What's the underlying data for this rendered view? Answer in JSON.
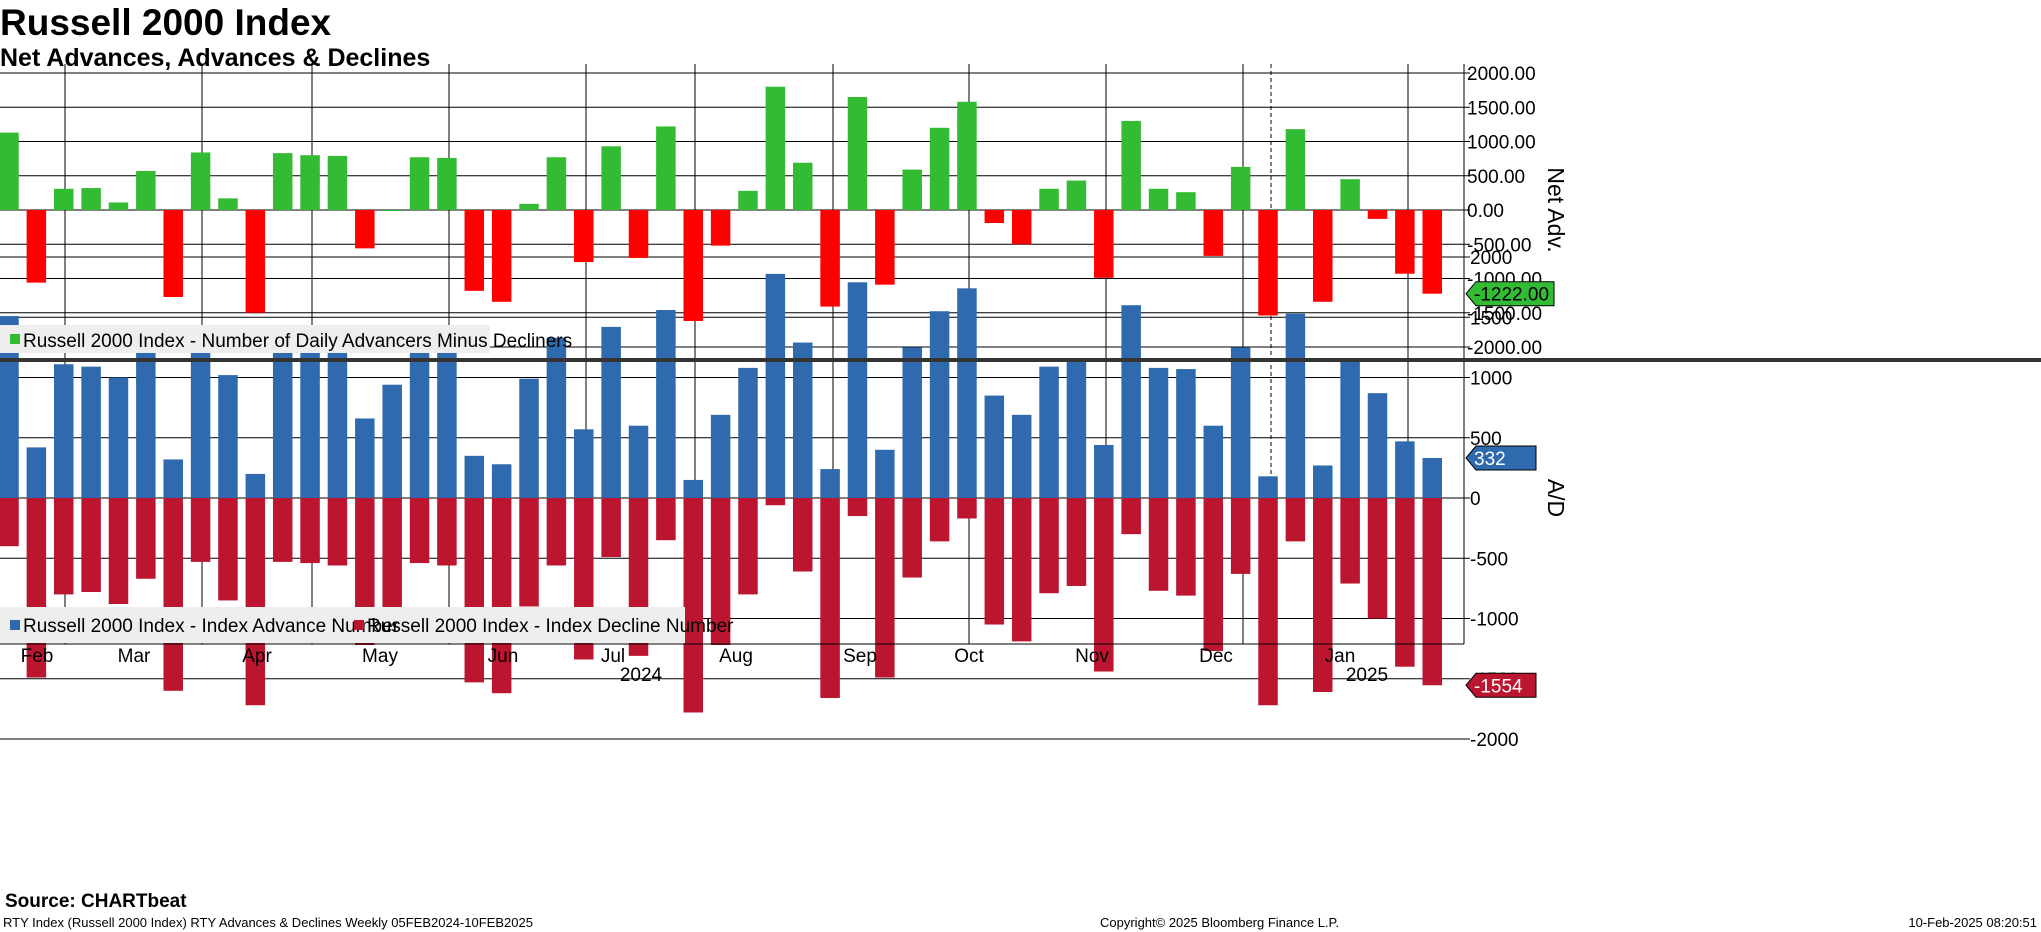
{
  "header": {
    "title": "Russell 2000 Index",
    "subtitle": "Net Advances, Advances & Declines"
  },
  "footer": {
    "source": "Source: CHARTbeat",
    "description": "RTY Index (Russell 2000 Index) RTY Advances & Declines  Weekly 05FEB2024-10FEB2025",
    "copyright": "Copyright© 2025 Bloomberg Finance L.P.",
    "timestamp": "10-Feb-2025 08:20:51"
  },
  "colors": {
    "positive": "#33bb33",
    "negative": "#ff0000",
    "advance": "#2e6aad",
    "decline": "#bb1530",
    "background": "#ffffff"
  },
  "chart_data": [
    {
      "type": "bar",
      "ylabel": "Net Adv.",
      "ylim": [
        -2000,
        2000
      ],
      "yticks": [
        "2000.00",
        "1500.00",
        "1000.00",
        "500.00",
        "0.00",
        "-500.00",
        "-1000.00",
        "-1500.00",
        "-2000.00"
      ],
      "grid": true,
      "last_value_label": "-1222.00",
      "legend": [
        "Russell 2000 Index - Number of Daily Advancers Minus Decliners"
      ],
      "legend_position": "bottom-left",
      "series": [
        {
          "name": "Russell 2000 Index - Number of Daily Advancers Minus Decliners",
          "values": [
            1130,
            -1060,
            310,
            320,
            110,
            570,
            -1270,
            840,
            170,
            -1500,
            830,
            800,
            790,
            -560,
            0,
            770,
            760,
            -1180,
            -1340,
            90,
            770,
            -760,
            930,
            -700,
            1220,
            -1620,
            -520,
            280,
            1800,
            690,
            -1410,
            1650,
            -1090,
            590,
            1200,
            1580,
            -190,
            -500,
            310,
            430,
            -990,
            1300,
            310,
            260,
            -670,
            630,
            -1540,
            1180,
            -1340,
            450,
            -130,
            -930,
            -1222
          ]
        }
      ]
    },
    {
      "type": "bar",
      "ylabel": "A/D",
      "ylim": [
        -2400,
        2100
      ],
      "yticks": [
        "2000",
        "1500",
        "1000",
        "500",
        "0",
        "-500",
        "-1000",
        "-1500",
        "-2000"
      ],
      "grid": true,
      "last_value_labels": [
        "332",
        "-1554"
      ],
      "legend": [
        "Russell 2000 Index - Index Advance Number",
        "Russell 2000 Index - Index Decline Number"
      ],
      "legend_position": "bottom-left",
      "series": [
        {
          "name": "Russell 2000 Index - Index Advance Number",
          "values": [
            1510,
            420,
            1110,
            1090,
            1000,
            1230,
            320,
            1370,
            1020,
            200,
            1370,
            1330,
            1340,
            660,
            940,
            1310,
            1310,
            350,
            280,
            990,
            1330,
            570,
            1420,
            600,
            1560,
            150,
            690,
            1080,
            1860,
            1290,
            240,
            1790,
            400,
            1250,
            1550,
            1740,
            850,
            690,
            1090,
            1160,
            440,
            1600,
            1080,
            1070,
            600,
            1250,
            180,
            1530,
            270,
            1160,
            870,
            470,
            332
          ]
        },
        {
          "name": "Russell 2000 Index - Index Decline Number",
          "values": [
            -400,
            -1490,
            -800,
            -780,
            -880,
            -670,
            -1600,
            -530,
            -850,
            -1720,
            -530,
            -540,
            -560,
            -1220,
            -940,
            -540,
            -560,
            -1530,
            -1620,
            -900,
            -560,
            -1340,
            -490,
            -1310,
            -350,
            -1780,
            -1220,
            -800,
            -60,
            -610,
            -1660,
            -150,
            -1490,
            -660,
            -360,
            -170,
            -1050,
            -1190,
            -790,
            -730,
            -1440,
            -300,
            -770,
            -810,
            -1270,
            -630,
            -1720,
            -360,
            -1610,
            -710,
            -1000,
            -1400,
            -1554
          ]
        }
      ]
    },
    {
      "type": "axis",
      "month_labels": [
        "Feb",
        "Mar",
        "Apr",
        "May",
        "Jun",
        "Jul",
        "Aug",
        "Sep",
        "Oct",
        "Nov",
        "Dec",
        "Jan"
      ],
      "year_labels": [
        "2024",
        "2025"
      ]
    }
  ]
}
